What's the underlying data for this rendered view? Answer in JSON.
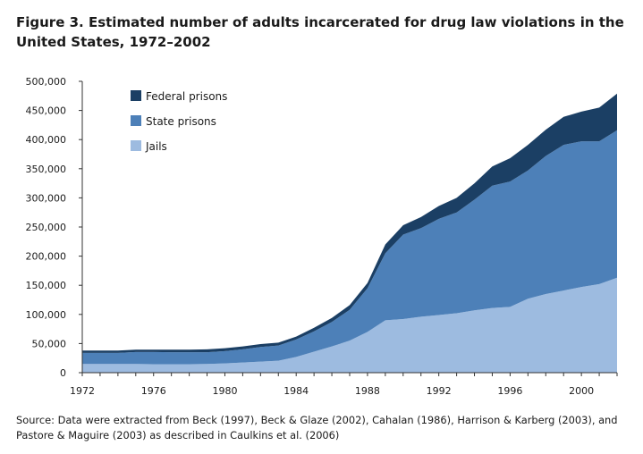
{
  "figure": {
    "title": "Figure 3. Estimated number of adults incarcerated for drug law violations in the United States, 1972–2002",
    "source": "Source: Data were extracted from Beck (1997), Beck & Glaze (2002), Cahalan (1986), Harrison & Karberg (2003), and Pastore & Maguire (2003) as described in Caulkins et al. (2006)"
  },
  "chart_data": {
    "type": "area",
    "stacked": true,
    "x": [
      1972,
      1973,
      1974,
      1975,
      1976,
      1977,
      1978,
      1979,
      1980,
      1981,
      1982,
      1983,
      1984,
      1985,
      1986,
      1987,
      1988,
      1989,
      1990,
      1991,
      1992,
      1993,
      1994,
      1995,
      1996,
      1997,
      1998,
      1999,
      2000,
      2001,
      2002
    ],
    "xlim": [
      1972,
      2002
    ],
    "ylim": [
      0,
      500000
    ],
    "x_ticks": [
      "1972",
      "1976",
      "1980",
      "1984",
      "1988",
      "1992",
      "1996",
      "2000"
    ],
    "y_ticks": [
      "0",
      "50,000",
      "100,000",
      "150,000",
      "200,000",
      "250,000",
      "300,000",
      "350,000",
      "400,000",
      "450,000",
      "500,000"
    ],
    "xlabel": "",
    "ylabel": "",
    "grid": false,
    "legend_position": "top-left",
    "series": [
      {
        "name": "Jails",
        "color": "#9dbbe0",
        "values": [
          15000,
          15000,
          15000,
          15000,
          14500,
          14500,
          14500,
          15000,
          16000,
          17500,
          19000,
          20500,
          27000,
          36000,
          45000,
          55000,
          70000,
          90000,
          92000,
          96000,
          99000,
          102000,
          107000,
          111000,
          113000,
          127000,
          135000,
          141000,
          147000,
          152000,
          163000
        ]
      },
      {
        "name": "State prisons",
        "color": "#4d80b8",
        "values": [
          19000,
          19000,
          19000,
          20500,
          21000,
          20500,
          20500,
          20000,
          21000,
          22500,
          25000,
          26000,
          30000,
          35000,
          42000,
          53000,
          75000,
          115000,
          145000,
          152000,
          165000,
          173000,
          190000,
          210000,
          215000,
          220000,
          237000,
          250000,
          250000,
          245000,
          253000
        ]
      },
      {
        "name": "Federal prisons",
        "color": "#1b3f64",
        "values": [
          4000,
          4000,
          4000,
          4000,
          4000,
          4500,
          4500,
          5000,
          5000,
          5000,
          5000,
          5000,
          5000,
          6000,
          7000,
          8000,
          9000,
          15000,
          16000,
          19000,
          22000,
          25000,
          28000,
          33000,
          40000,
          44000,
          45000,
          48000,
          51000,
          58000,
          63000
        ]
      }
    ]
  }
}
